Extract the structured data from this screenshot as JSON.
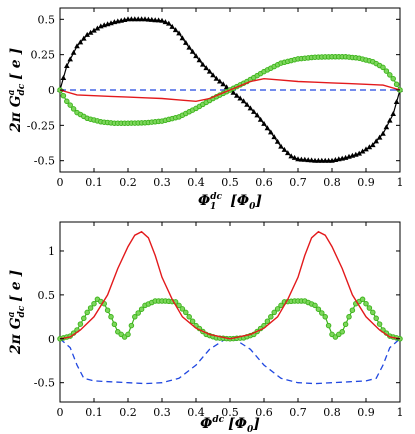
{
  "chart_data": [
    {
      "type": "line",
      "ylabel": {
        "main": "2π G",
        "sup": "a",
        "sub": "dc",
        "unit": "[ e ]"
      },
      "xlabel": {
        "main": "Φ",
        "sup": "dc",
        "sub": "1",
        "unit": "[Φ",
        "unit_sub": "0",
        "unit_close": "]"
      },
      "xlim": [
        0,
        1
      ],
      "ylim": [
        -0.58,
        0.58
      ],
      "xticks": [
        "0",
        "0.1",
        "0.2",
        "0.3",
        "0.4",
        "0.5",
        "0.6",
        "0.7",
        "0.8",
        "0.9",
        "1"
      ],
      "yticks": [
        "0.5",
        "0.25",
        "0",
        "-0.25",
        "-0.5"
      ],
      "ytick_values": [
        0.5,
        0.25,
        0,
        -0.25,
        -0.5
      ],
      "colors": {
        "black": "#000000",
        "red": "#e31a1c",
        "green": "#3cb31b",
        "green_fill": "#7dd65c",
        "blue": "#2148e0"
      },
      "series": [
        {
          "style": "black-triangles",
          "x": [
            0,
            0.02,
            0.05,
            0.08,
            0.12,
            0.16,
            0.2,
            0.25,
            0.3,
            0.32,
            0.35,
            0.38,
            0.42,
            0.46,
            0.5,
            0.54,
            0.58,
            0.62,
            0.65,
            0.68,
            0.7,
            0.75,
            0.8,
            0.84,
            0.88,
            0.92,
            0.95,
            0.98,
            1.0
          ],
          "y": [
            0,
            0.17,
            0.31,
            0.39,
            0.45,
            0.48,
            0.5,
            0.5,
            0.49,
            0.47,
            0.4,
            0.3,
            0.18,
            0.08,
            0,
            -0.08,
            -0.18,
            -0.3,
            -0.4,
            -0.47,
            -0.49,
            -0.5,
            -0.5,
            -0.48,
            -0.45,
            -0.39,
            -0.31,
            -0.17,
            0
          ]
        },
        {
          "style": "green-circles",
          "x": [
            0,
            0.02,
            0.05,
            0.08,
            0.12,
            0.16,
            0.2,
            0.25,
            0.3,
            0.35,
            0.4,
            0.45,
            0.5,
            0.55,
            0.6,
            0.65,
            0.7,
            0.75,
            0.8,
            0.84,
            0.88,
            0.92,
            0.95,
            0.98,
            1.0
          ],
          "y": [
            0,
            -0.08,
            -0.16,
            -0.2,
            -0.225,
            -0.235,
            -0.235,
            -0.232,
            -0.22,
            -0.19,
            -0.13,
            -0.06,
            0,
            0.06,
            0.13,
            0.19,
            0.22,
            0.232,
            0.235,
            0.235,
            0.225,
            0.2,
            0.16,
            0.08,
            0
          ]
        },
        {
          "style": "red-line",
          "x": [
            0,
            0.05,
            0.1,
            0.15,
            0.2,
            0.25,
            0.3,
            0.35,
            0.4,
            0.44,
            0.47,
            0.5,
            0.53,
            0.56,
            0.6,
            0.65,
            0.7,
            0.75,
            0.8,
            0.85,
            0.9,
            0.95,
            1.0
          ],
          "y": [
            0,
            -0.035,
            -0.04,
            -0.045,
            -0.05,
            -0.055,
            -0.06,
            -0.07,
            -0.08,
            -0.06,
            -0.03,
            0,
            0.03,
            0.06,
            0.08,
            0.07,
            0.06,
            0.055,
            0.05,
            0.045,
            0.04,
            0.035,
            0
          ]
        },
        {
          "style": "blue-dashed",
          "x": [
            0,
            1
          ],
          "y": [
            0,
            0
          ]
        }
      ]
    },
    {
      "type": "line",
      "ylabel": {
        "main": "2π G",
        "sup": "a",
        "sub": "dc",
        "unit": "[ e ]"
      },
      "xlabel": {
        "main": "Φ",
        "sup": "dc",
        "sub": "",
        "unit": "[Φ",
        "unit_sub": "0",
        "unit_close": "]"
      },
      "xlim": [
        0,
        1
      ],
      "ylim": [
        -0.72,
        1.33
      ],
      "xticks": [
        "0",
        "0.1",
        "0.2",
        "0.3",
        "0.4",
        "0.5",
        "0.6",
        "0.7",
        "0.8",
        "0.9",
        "1"
      ],
      "yticks": [
        "1",
        "0.5",
        "0",
        "-0.5"
      ],
      "ytick_values": [
        1,
        0.5,
        0,
        -0.5
      ],
      "series": [
        {
          "style": "red-line",
          "x": [
            0,
            0.03,
            0.06,
            0.1,
            0.14,
            0.17,
            0.2,
            0.22,
            0.24,
            0.26,
            0.28,
            0.3,
            0.33,
            0.36,
            0.4,
            0.44,
            0.5,
            0.56,
            0.6,
            0.64,
            0.67,
            0.7,
            0.72,
            0.74,
            0.76,
            0.78,
            0.8,
            0.83,
            0.86,
            0.9,
            0.94,
            0.97,
            1.0
          ],
          "y": [
            0,
            0.02,
            0.1,
            0.25,
            0.5,
            0.8,
            1.05,
            1.18,
            1.22,
            1.15,
            0.95,
            0.7,
            0.45,
            0.25,
            0.12,
            0.05,
            0,
            0.05,
            0.12,
            0.25,
            0.45,
            0.7,
            0.95,
            1.15,
            1.22,
            1.18,
            1.05,
            0.8,
            0.5,
            0.25,
            0.1,
            0.02,
            0
          ]
        },
        {
          "style": "green-circles",
          "x": [
            0,
            0.03,
            0.05,
            0.08,
            0.11,
            0.13,
            0.15,
            0.17,
            0.19,
            0.2,
            0.22,
            0.25,
            0.28,
            0.31,
            0.34,
            0.37,
            0.4,
            0.43,
            0.46,
            0.5,
            0.54,
            0.57,
            0.6,
            0.63,
            0.66,
            0.69,
            0.72,
            0.75,
            0.78,
            0.8,
            0.81,
            0.83,
            0.85,
            0.87,
            0.89,
            0.92,
            0.95,
            0.97,
            1.0
          ],
          "y": [
            0,
            0.03,
            0.1,
            0.3,
            0.45,
            0.4,
            0.25,
            0.08,
            0.02,
            0.05,
            0.25,
            0.38,
            0.43,
            0.43,
            0.42,
            0.3,
            0.15,
            0.05,
            0.01,
            0,
            0.01,
            0.05,
            0.15,
            0.3,
            0.42,
            0.43,
            0.43,
            0.38,
            0.25,
            0.05,
            0.02,
            0.08,
            0.25,
            0.4,
            0.45,
            0.3,
            0.1,
            0.03,
            0
          ]
        },
        {
          "style": "blue-dashed",
          "x": [
            0,
            0.03,
            0.05,
            0.07,
            0.1,
            0.15,
            0.2,
            0.25,
            0.3,
            0.35,
            0.4,
            0.44,
            0.48,
            0.5,
            0.52,
            0.56,
            0.6,
            0.65,
            0.7,
            0.75,
            0.8,
            0.85,
            0.9,
            0.93,
            0.95,
            0.97,
            1.0
          ],
          "y": [
            0,
            -0.1,
            -0.3,
            -0.45,
            -0.48,
            -0.49,
            -0.5,
            -0.51,
            -0.5,
            -0.45,
            -0.3,
            -0.12,
            -0.02,
            0,
            -0.02,
            -0.12,
            -0.3,
            -0.45,
            -0.5,
            -0.51,
            -0.5,
            -0.49,
            -0.48,
            -0.45,
            -0.3,
            -0.1,
            0
          ]
        }
      ]
    }
  ]
}
